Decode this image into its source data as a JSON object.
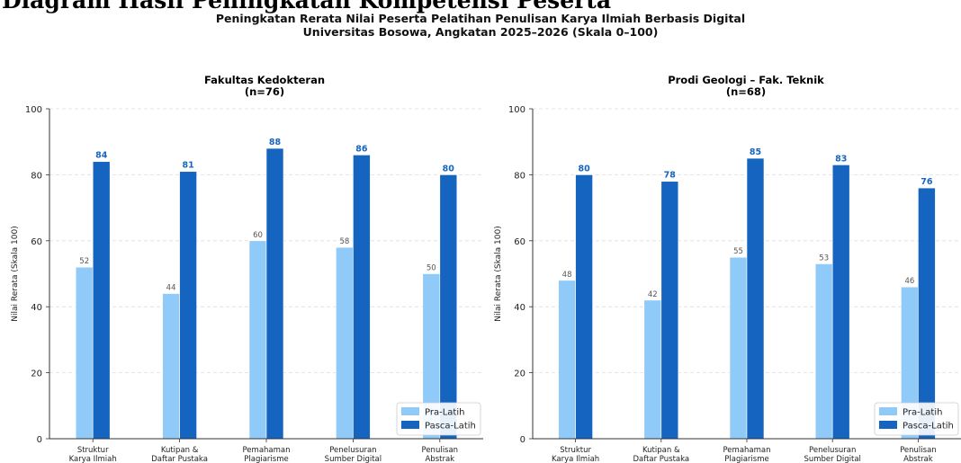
{
  "heading": "Diagram Hasil Peningkatan Kompetensi Peserta",
  "suptitle": {
    "line1": "Peningkatan Rerata Nilai Peserta Pelatihan Penulisan Karya Ilmiah Berbasis Digital",
    "line2": "Universitas Bosowa, Angkatan 2025–2026 (Skala 0–100)"
  },
  "colors": {
    "pre": "#90caf9",
    "post": "#1565c0",
    "post_label": "#1565c0",
    "pre_label": "#555555"
  },
  "chart_data": [
    {
      "type": "bar",
      "title": [
        "Fakultas Kedokteran",
        "(n=76)"
      ],
      "ylabel": "Nilai Rerata (Skala 100)",
      "ylim": [
        0,
        100
      ],
      "yticks": [
        0,
        20,
        40,
        60,
        80,
        100
      ],
      "grid": true,
      "legend_position": "bottom-right",
      "categories": [
        [
          "Struktur",
          "Karya Ilmiah"
        ],
        [
          "Kutipan &",
          "Daftar Pustaka"
        ],
        [
          "Pemahaman",
          "Plagiarisme"
        ],
        [
          "Penelusuran",
          "Sumber Digital"
        ],
        [
          "Penulisan",
          "Abstrak"
        ]
      ],
      "series": [
        {
          "name": "Pra-Latih",
          "values": [
            52,
            44,
            60,
            58,
            50
          ]
        },
        {
          "name": "Pasca-Latih",
          "values": [
            84,
            81,
            88,
            86,
            80
          ]
        }
      ]
    },
    {
      "type": "bar",
      "title": [
        "Prodi Geologi – Fak. Teknik",
        "(n=68)"
      ],
      "ylabel": "Nilai Rerata (Skala 100)",
      "ylim": [
        0,
        100
      ],
      "yticks": [
        0,
        20,
        40,
        60,
        80,
        100
      ],
      "grid": true,
      "legend_position": "bottom-right",
      "categories": [
        [
          "Struktur",
          "Karya Ilmiah"
        ],
        [
          "Kutipan &",
          "Daftar Pustaka"
        ],
        [
          "Pemahaman",
          "Plagiarisme"
        ],
        [
          "Penelusuran",
          "Sumber Digital"
        ],
        [
          "Penulisan",
          "Abstrak"
        ]
      ],
      "series": [
        {
          "name": "Pra-Latih",
          "values": [
            48,
            42,
            55,
            53,
            46
          ]
        },
        {
          "name": "Pasca-Latih",
          "values": [
            80,
            78,
            85,
            83,
            76
          ]
        }
      ]
    }
  ]
}
